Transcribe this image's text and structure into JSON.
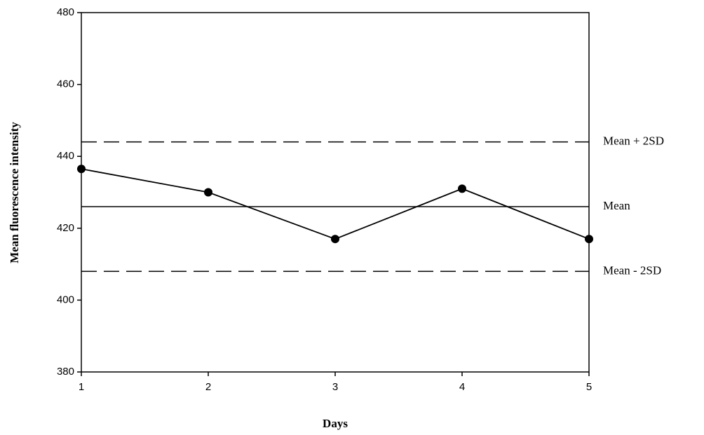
{
  "chart_data": {
    "type": "line",
    "x": [
      1,
      2,
      3,
      4,
      5
    ],
    "values": [
      436.5,
      430,
      417,
      431,
      417
    ],
    "color": "#000000",
    "xlabel": "Days",
    "ylabel": "Mean fluorescence intensity",
    "xlim": [
      1,
      5
    ],
    "xticks": [
      1,
      2,
      3,
      4,
      5
    ],
    "ylim": [
      380,
      480
    ],
    "yticks": [
      380,
      400,
      420,
      440,
      460,
      480
    ],
    "reference_lines": [
      {
        "label": "Mean + 2SD",
        "value": 444,
        "style": "dashed"
      },
      {
        "label": "Mean",
        "value": 426,
        "style": "solid"
      },
      {
        "label": "Mean - 2SD",
        "value": 408,
        "style": "dashed"
      }
    ]
  }
}
